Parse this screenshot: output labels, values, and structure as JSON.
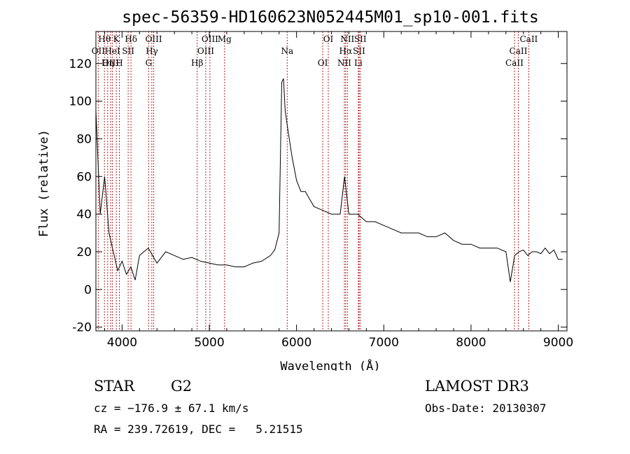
{
  "chart_data": {
    "type": "line",
    "title": "spec-56359-HD160623N052445M01_sp10-001.fits",
    "xlabel": "Wavelength (Å)",
    "ylabel": "Flux (relative)",
    "xlim": [
      3700,
      9100
    ],
    "ylim": [
      -22,
      137
    ],
    "x_ticks": [
      4000,
      5000,
      6000,
      7000,
      8000,
      9000
    ],
    "y_ticks": [
      -20,
      0,
      20,
      40,
      60,
      80,
      100,
      120
    ],
    "grid": false,
    "series": [
      {
        "x": [
          3700,
          3750,
          3800,
          3850,
          3900,
          3950,
          4000,
          4050,
          4100,
          4150,
          4200,
          4300,
          4400,
          4500,
          4600,
          4700,
          4800,
          4900,
          5000,
          5100,
          5200,
          5300,
          5400,
          5500,
          5600,
          5700,
          5750,
          5800,
          5830,
          5850,
          5870,
          5900,
          5950,
          6000,
          6050,
          6100,
          6150,
          6200,
          6300,
          6400,
          6500,
          6550,
          6600,
          6700,
          6750,
          6800,
          6900,
          7000,
          7100,
          7200,
          7300,
          7400,
          7500,
          7600,
          7700,
          7800,
          7900,
          8000,
          8100,
          8200,
          8300,
          8400,
          8450,
          8500,
          8550,
          8600,
          8650,
          8700,
          8750,
          8800,
          8850,
          8900,
          8950,
          9000,
          9050
        ],
        "y": [
          95,
          40,
          60,
          30,
          20,
          10,
          15,
          8,
          12,
          5,
          18,
          22,
          14,
          20,
          18,
          16,
          17,
          15,
          14,
          13,
          13,
          12,
          12,
          14,
          15,
          18,
          21,
          30,
          110,
          112,
          95,
          85,
          70,
          58,
          52,
          52,
          48,
          44,
          42,
          40,
          40,
          60,
          40,
          40,
          38,
          36,
          36,
          34,
          32,
          30,
          30,
          30,
          28,
          28,
          30,
          26,
          24,
          24,
          22,
          22,
          22,
          20,
          4,
          18,
          20,
          21,
          18,
          20,
          20,
          19,
          22,
          19,
          21,
          16,
          16
        ]
      }
    ],
    "spectral_lines": [
      {
        "label": "Hθ",
        "x": 3798
      },
      {
        "label": "OII",
        "x": 3727
      },
      {
        "label": "OIII",
        "x": 3869
      },
      {
        "label": "K",
        "x": 3934
      },
      {
        "label": "HeI",
        "x": 3889
      },
      {
        "label": "Hη",
        "x": 3835
      },
      {
        "label": "Hδ",
        "x": 4102
      },
      {
        "label": "SII",
        "x": 4070
      },
      {
        "label": "H",
        "x": 3969
      },
      {
        "label": "OIII",
        "x": 4363
      },
      {
        "label": "Hγ",
        "x": 4341
      },
      {
        "label": "G",
        "x": 4305
      },
      {
        "label": "OIII",
        "x": 5007
      },
      {
        "label": "OIII",
        "x": 4959
      },
      {
        "label": "Hβ",
        "x": 4861
      },
      {
        "label": "Mg",
        "x": 5175
      },
      {
        "label": "Na",
        "x": 5893
      },
      {
        "label": "OI",
        "x": 6300
      },
      {
        "label": "OI",
        "x": 6364
      },
      {
        "label": "Hα",
        "x": 6563
      },
      {
        "label": "NII",
        "x": 6548
      },
      {
        "label": "NII",
        "x": 6583
      },
      {
        "label": "SII",
        "x": 6717
      },
      {
        "label": "Li",
        "x": 6708
      },
      {
        "label": "SII",
        "x": 6731
      },
      {
        "label": "CaII",
        "x": 8542
      },
      {
        "label": "CaII",
        "x": 8498
      },
      {
        "label": "CaII",
        "x": 8662
      }
    ]
  },
  "info": {
    "object_type": "STAR",
    "subclass": "G2",
    "survey": "LAMOST DR3",
    "cz": "cz = −176.9 ± 67.1 km/s",
    "obs_date": "Obs-Date: 20130307",
    "radec": "RA = 239.72619, DEC =   5.21515"
  }
}
